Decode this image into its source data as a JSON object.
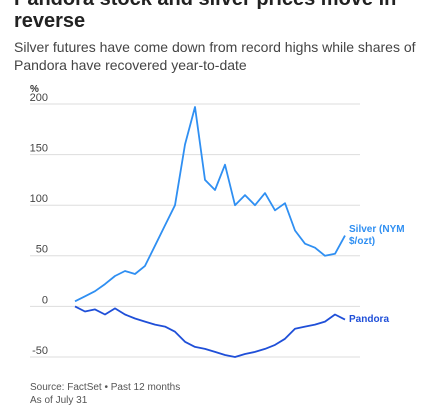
{
  "chart_data": {
    "type": "line",
    "title": "Pandora stock and silver prices move in reverse",
    "subtitle": "Silver futures have come down from record highs while shares of Pandora have recovered year-to-date",
    "y_label": "%",
    "source": "Source: FactSet • Past 12 months",
    "note": "As of July 31",
    "ylim": [
      -50,
      200
    ],
    "yticks": [
      -50,
      0,
      50,
      100,
      150,
      200
    ],
    "grid": true,
    "series": [
      {
        "name": "Silver (NYM $/ozt)",
        "color": "#2f8ff2",
        "values": [
          5,
          10,
          15,
          22,
          30,
          35,
          32,
          40,
          60,
          80,
          100,
          160,
          197,
          125,
          115,
          140,
          100,
          110,
          100,
          112,
          95,
          102,
          75,
          62,
          58,
          50,
          52,
          70
        ]
      },
      {
        "name": "Pandora",
        "color": "#1f4fd8",
        "values": [
          0,
          -5,
          -3,
          -8,
          -2,
          -8,
          -12,
          -15,
          -18,
          -20,
          -25,
          -35,
          -40,
          -42,
          -45,
          -48,
          -50,
          -47,
          -45,
          -42,
          -38,
          -32,
          -22,
          -20,
          -18,
          -15,
          -8,
          -13
        ]
      }
    ]
  }
}
